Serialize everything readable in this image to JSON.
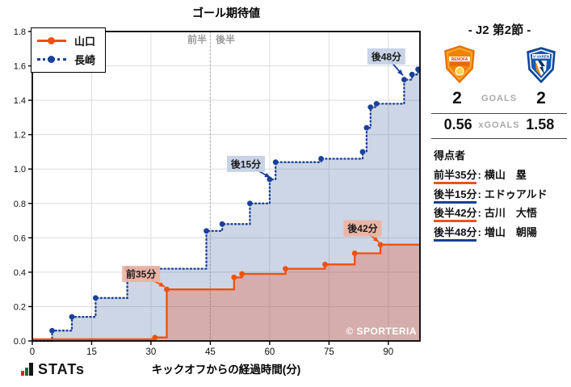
{
  "chart": {
    "title": "ゴール期待値",
    "xlabel": "キックオフからの経過時間(分)",
    "watermark": "© SPORTERIA",
    "first_half_label": "前半",
    "second_half_label": "後半"
  },
  "chart_data": {
    "type": "line",
    "subtype": "step-post-cumulative-xg",
    "title": "ゴール期待値",
    "xlabel": "キックオフからの経過時間(分)",
    "ylabel": "",
    "xlim": [
      0,
      98
    ],
    "ylim": [
      0,
      1.8
    ],
    "xticks": [
      0,
      15,
      30,
      45,
      60,
      75,
      90
    ],
    "ytick_step": 0.2,
    "grid": true,
    "halftime_x": 45,
    "legend_position": "upper-left",
    "series": [
      {
        "name": "長崎",
        "team": "away",
        "style": "dotted",
        "final_xg": 1.58,
        "points": [
          [
            0,
            0
          ],
          [
            5,
            0.06
          ],
          [
            10,
            0.14
          ],
          [
            16,
            0.25
          ],
          [
            24,
            0.42
          ],
          [
            44,
            0.64
          ],
          [
            48,
            0.68
          ],
          [
            55,
            0.8
          ],
          [
            60,
            0.94
          ],
          [
            61.5,
            1.04
          ],
          [
            73,
            1.06
          ],
          [
            83.5,
            1.1
          ],
          [
            84.5,
            1.24
          ],
          [
            85.5,
            1.36
          ],
          [
            87,
            1.38
          ],
          [
            94,
            1.52
          ],
          [
            96,
            1.55
          ],
          [
            97.5,
            1.58
          ]
        ]
      },
      {
        "name": "山口",
        "team": "home",
        "style": "solid",
        "final_xg": 0.56,
        "points": [
          [
            0,
            0.01
          ],
          [
            31,
            0.02
          ],
          [
            34,
            0.3
          ],
          [
            51,
            0.37
          ],
          [
            53,
            0.39
          ],
          [
            64,
            0.42
          ],
          [
            74,
            0.445
          ],
          [
            81.5,
            0.51
          ],
          [
            88,
            0.56
          ],
          [
            97.5,
            0.56
          ]
        ]
      }
    ],
    "annotations": [
      {
        "text": "前35分",
        "cx": 27.5,
        "cy": 0.39,
        "tipx": 33.5,
        "tipy": 0.315,
        "team": "home"
      },
      {
        "text": "後15分",
        "cx": 54,
        "cy": 1.03,
        "tipx": 60.2,
        "tipy": 0.95,
        "team": "away"
      },
      {
        "text": "後42分",
        "cx": 83.5,
        "cy": 0.655,
        "tipx": 87.6,
        "tipy": 0.575,
        "team": "home"
      },
      {
        "text": "後48分",
        "cx": 89.5,
        "cy": 1.655,
        "tipx": 93.7,
        "tipy": 1.545,
        "team": "away"
      }
    ]
  },
  "panel": {
    "title": "- J2 第2節 -",
    "goals_label": "GOALS",
    "home_goals": "2",
    "away_goals": "2",
    "xgoals_label": "xGOALS",
    "home_xgoals": "0.56",
    "away_xgoals": "1.58",
    "scorers_title": "得点者",
    "scorers": [
      {
        "time": "前半35分",
        "name": "横山　塁",
        "team": "home"
      },
      {
        "time": "後半15分",
        "name": "エドゥアルド",
        "team": "away"
      },
      {
        "time": "後半42分",
        "name": "古川　大悟",
        "team": "home"
      },
      {
        "time": "後半48分",
        "name": "増山　朝陽",
        "team": "away"
      }
    ]
  },
  "footer": {
    "logo_text": "STATs"
  },
  "colors": {
    "home": "#F1500A",
    "away": "#1A4199",
    "home_fill": "rgba(230,80,40,0.30)",
    "away_fill": "rgba(88,118,172,0.30)",
    "home_box": "rgba(237,178,162,0.92)",
    "away_box": "rgba(197,209,229,0.95)",
    "grid": "#dcdcdc",
    "half_line": "#b5b5b5",
    "frame": "#000000",
    "tick_text": "#111111"
  }
}
